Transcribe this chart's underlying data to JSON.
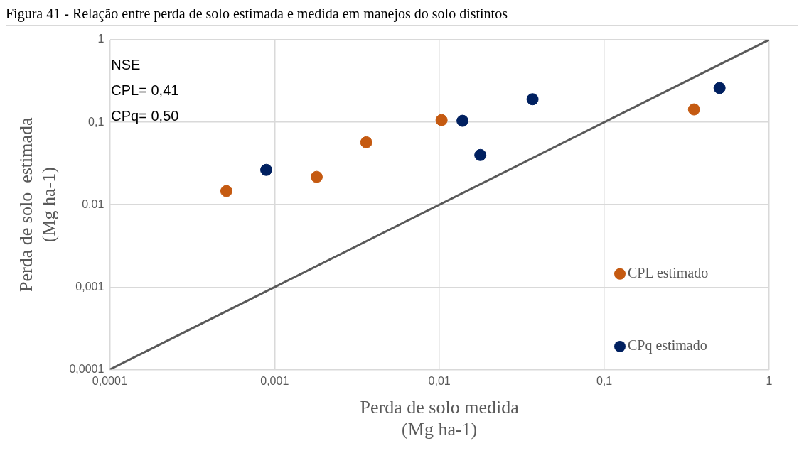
{
  "chart_data": {
    "type": "scatter",
    "title": "Figura 41 - Relação entre perda de solo estimada e medida em manejos do solo distintos",
    "xlabel": "Perda de solo medida\n(Mg ha-1)",
    "ylabel": "Perda de solo  estimada\n(Mg ha-1)",
    "log": "xy",
    "grid": true,
    "legend": "right",
    "xlim": [
      0.0001,
      1
    ],
    "xticks": [
      {
        "value": 0.0001,
        "label": "0,0001"
      },
      {
        "value": 0.001,
        "label": "0,001"
      },
      {
        "value": 0.01,
        "label": "0,01"
      },
      {
        "value": 0.1,
        "label": "0,1"
      },
      1
    ],
    "ylim": [
      0.0001,
      1
    ],
    "yticks": [
      {
        "value": 0.0001,
        "label": "0,0001"
      },
      {
        "value": 0.001,
        "label": "0,001"
      },
      {
        "value": 0.01,
        "label": "0,01"
      },
      {
        "value": 0.1,
        "label": "0,1"
      },
      1
    ],
    "annotations": [
      "NSE",
      "CPL= 0,41",
      "CPq= 0,50"
    ],
    "series": [
      {
        "name": "CPL estimado",
        "color": "#c55a11",
        "marker": "circle",
        "x": [
          0.00051,
          0.0018,
          0.0036,
          0.0103,
          0.35
        ],
        "values": [
          0.0146,
          0.0217,
          0.057,
          0.106,
          0.143
        ]
      },
      {
        "name": "CPq estimado",
        "color": "#002060",
        "marker": "circle",
        "x": [
          0.00089,
          0.0138,
          0.0177,
          0.0367,
          0.5
        ],
        "values": [
          0.0264,
          0.104,
          0.04,
          0.19,
          0.26
        ]
      },
      {
        "type": "line",
        "color": "#595959",
        "x": [
          0.0001,
          1
        ],
        "values": [
          0.0001,
          1
        ],
        "marker": "none",
        "line_style": "solid"
      }
    ]
  }
}
